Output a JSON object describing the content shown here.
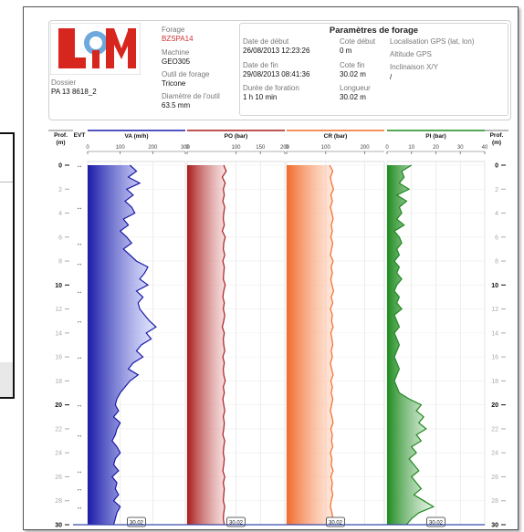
{
  "header": {
    "dossier_label": "Dossier",
    "dossier_value": "PA 13 8618_2",
    "forage_label": "Forage",
    "forage_value": "BZSPA14",
    "machine_label": "Machine",
    "machine_value": "GEO305",
    "outil_label": "Outil de forage",
    "outil_value": "Tricone",
    "diametre_label": "Diamètre de l'outil",
    "diametre_value": "63.5 mm",
    "params_title": "Paramètres de forage",
    "date_debut_label": "Date de début",
    "date_debut_value": "26/08/2013 12:23:26",
    "date_fin_label": "Date de fin",
    "date_fin_value": "29/08/2013 08:41:36",
    "duree_label": "Durée de foration",
    "duree_value": "1 h 10 min",
    "cote_debut_label": "Cote début",
    "cote_debut_value": "0 m",
    "cote_fin_label": "Cote fin",
    "cote_fin_value": "30.02 m",
    "longueur_label": "Longueur",
    "longueur_value": "30.02 m",
    "gps_label": "Localisation GPS (lat, lon)",
    "altitude_label": "Altitude GPS",
    "inclinaison_label": "Inclinaison X/Y",
    "inclinaison_value": "/"
  },
  "logo_text": "LiM",
  "chart_data": {
    "type": "line",
    "depth_axis": {
      "label": "Prof. (m)",
      "range": [
        0,
        30
      ],
      "ticks": [
        0,
        2,
        4,
        6,
        8,
        10,
        12,
        14,
        16,
        18,
        20,
        22,
        24,
        26,
        28,
        30
      ]
    },
    "evt_label": "EVT",
    "end_marker": "30.02",
    "evt_depths": [
      0,
      3.5,
      6.5,
      8.2,
      10.5,
      13,
      16,
      20,
      22.5,
      25.5,
      27,
      28.5
    ],
    "depths": [
      0,
      0.5,
      1,
      1.5,
      2,
      2.5,
      3,
      3.5,
      4,
      4.5,
      5,
      5.5,
      6,
      6.5,
      7,
      7.5,
      8,
      8.5,
      9,
      9.5,
      10,
      10.5,
      11,
      11.5,
      12,
      12.5,
      13,
      13.5,
      14,
      14.5,
      15,
      15.5,
      16,
      16.5,
      17,
      17.5,
      18,
      18.5,
      19,
      19.5,
      20,
      20.5,
      21,
      21.5,
      22,
      22.5,
      23,
      23.5,
      24,
      24.5,
      25,
      25.5,
      26,
      26.5,
      27,
      27.5,
      28,
      28.5,
      29,
      29.5,
      30
    ],
    "series": [
      {
        "name": "VA (m/h)",
        "color": "#1a1aa8",
        "range": [
          0,
          300
        ],
        "ticks": [
          0,
          100,
          200,
          300
        ],
        "values": [
          130,
          150,
          125,
          160,
          120,
          140,
          115,
          135,
          145,
          110,
          125,
          100,
          120,
          135,
          110,
          130,
          150,
          185,
          175,
          160,
          185,
          150,
          170,
          155,
          160,
          175,
          190,
          210,
          180,
          195,
          165,
          150,
          170,
          140,
          125,
          155,
          130,
          115,
          100,
          90,
          85,
          95,
          80,
          100,
          90,
          85,
          75,
          90,
          100,
          85,
          80,
          95,
          75,
          90,
          85,
          95,
          80,
          100,
          90,
          85,
          80
        ]
      },
      {
        "name": "PO (bar)",
        "color": "#a81c1c",
        "range": [
          0,
          200
        ],
        "ticks": [
          0,
          100,
          150,
          200
        ],
        "values": [
          75,
          80,
          72,
          78,
          74,
          76,
          73,
          77,
          75,
          74,
          76,
          72,
          78,
          75,
          74,
          77,
          73,
          76,
          75,
          74,
          78,
          75,
          73,
          76,
          74,
          77,
          75,
          72,
          76,
          74,
          75,
          77,
          73,
          76,
          74,
          75,
          78,
          74,
          76,
          73,
          75,
          77,
          74,
          76,
          75,
          73,
          77,
          75,
          74,
          76,
          75,
          73,
          77,
          74,
          76,
          75,
          74,
          77,
          75,
          74,
          76
        ]
      },
      {
        "name": "CR (bar)",
        "color": "#f06a2a",
        "range": [
          0,
          250
        ],
        "ticks": [
          0,
          100,
          200
        ],
        "values": [
          110,
          118,
          112,
          115,
          120,
          113,
          117,
          112,
          116,
          119,
          114,
          117,
          113,
          118,
          115,
          112,
          119,
          114,
          117,
          113,
          116,
          120,
          114,
          118,
          112,
          117,
          115,
          119,
          113,
          116,
          118,
          114,
          117,
          112,
          115,
          119,
          113,
          117,
          114,
          118,
          115,
          112,
          116,
          119,
          113,
          117,
          115,
          118,
          112,
          116,
          114,
          119,
          113,
          117,
          115,
          118,
          114,
          112,
          116,
          118,
          115
        ]
      },
      {
        "name": "PI (bar)",
        "color": "#1f8a1f",
        "range": [
          0,
          40
        ],
        "ticks": [
          0,
          10,
          20,
          30,
          40
        ],
        "values": [
          10,
          6,
          7,
          5,
          9,
          4,
          8,
          5,
          6,
          4,
          7,
          3,
          5,
          6,
          4,
          5,
          3,
          5,
          4,
          6,
          4,
          3,
          5,
          4,
          6,
          3,
          4,
          5,
          3,
          4,
          5,
          4,
          3,
          4,
          5,
          4,
          3,
          4,
          5,
          9,
          14,
          12,
          15,
          13,
          16,
          12,
          14,
          10,
          12,
          9,
          11,
          13,
          10,
          12,
          14,
          11,
          15,
          19,
          13,
          10,
          8
        ]
      }
    ]
  }
}
